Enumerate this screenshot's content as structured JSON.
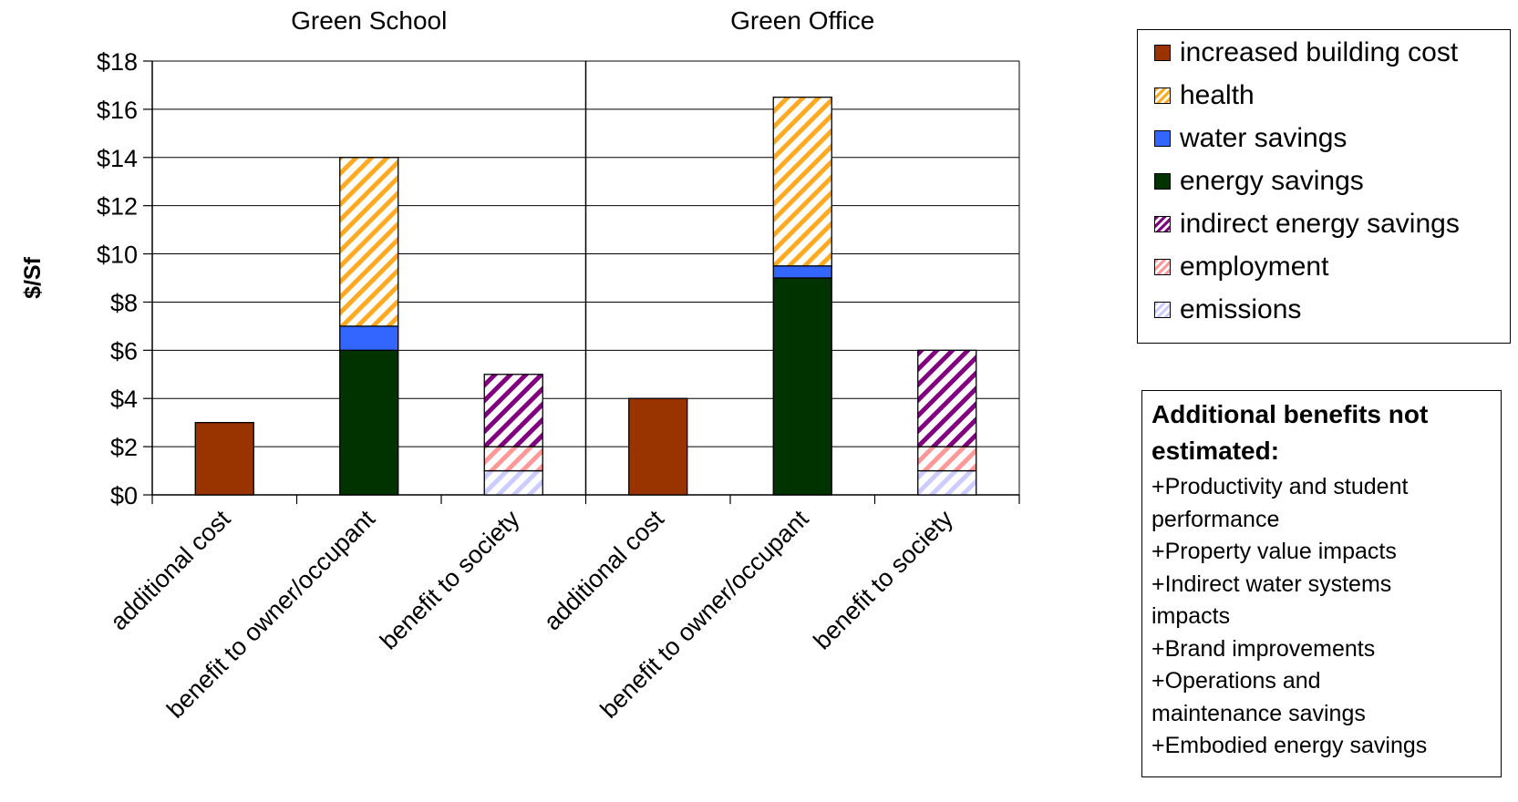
{
  "chart_data": {
    "type": "bar",
    "stacked": true,
    "ylabel": "$/Sf",
    "ylim": [
      0,
      18
    ],
    "y_ticks": [
      "$0",
      "$2",
      "$4",
      "$6",
      "$8",
      "$10",
      "$12",
      "$14",
      "$16",
      "$18"
    ],
    "grid": true,
    "legend_position": "right",
    "groups": [
      {
        "title": "Green School",
        "categories": [
          "additional cost",
          "benefit to owner/occupant",
          "benefit to society"
        ]
      },
      {
        "title": "Green Office",
        "categories": [
          "additional cost",
          "benefit to owner/occupant",
          "benefit to society"
        ]
      }
    ],
    "series": [
      {
        "name": "increased building cost",
        "color": "#993300",
        "pattern": "solid",
        "values": [
          3,
          0,
          0,
          4,
          0,
          0
        ]
      },
      {
        "name": "energy savings",
        "color": "#003300",
        "pattern": "solid",
        "values": [
          0,
          6,
          0,
          0,
          9,
          0
        ]
      },
      {
        "name": "water savings",
        "color": "#3366FF",
        "pattern": "solid",
        "values": [
          0,
          1,
          0,
          0,
          0.5,
          0
        ]
      },
      {
        "name": "health",
        "color": "#FFAA22",
        "pattern": "hatch",
        "values": [
          0,
          7,
          0,
          0,
          7,
          0
        ]
      },
      {
        "name": "emissions",
        "color": "#CCCCFF",
        "pattern": "hatch",
        "values": [
          0,
          0,
          1,
          0,
          0,
          1
        ]
      },
      {
        "name": "employment",
        "color": "#FF9999",
        "pattern": "hatch",
        "values": [
          0,
          0,
          1,
          0,
          0,
          1
        ]
      },
      {
        "name": "indirect energy savings",
        "color": "#800080",
        "pattern": "hatch",
        "values": [
          0,
          0,
          3,
          0,
          0,
          4
        ]
      }
    ]
  },
  "legend": {
    "items": [
      {
        "label": "increased building cost",
        "color": "#993300",
        "pattern": "solid"
      },
      {
        "label": "health",
        "color": "#FFAA22",
        "pattern": "hatch"
      },
      {
        "label": "water savings",
        "color": "#3366FF",
        "pattern": "solid"
      },
      {
        "label": "energy savings",
        "color": "#003300",
        "pattern": "solid"
      },
      {
        "label": "indirect energy savings",
        "color": "#800080",
        "pattern": "hatch"
      },
      {
        "label": "employment",
        "color": "#FF9999",
        "pattern": "hatch"
      },
      {
        "label": "emissions",
        "color": "#CCCCFF",
        "pattern": "hatch"
      }
    ]
  },
  "notes": {
    "title": "Additional benefits not estimated:",
    "lines": [
      "+Productivity and student",
      "performance",
      "+Property value impacts",
      "+Indirect water systems",
      "impacts",
      "+Brand improvements",
      "+Operations and",
      "maintenance savings",
      "+Embodied energy savings"
    ]
  }
}
